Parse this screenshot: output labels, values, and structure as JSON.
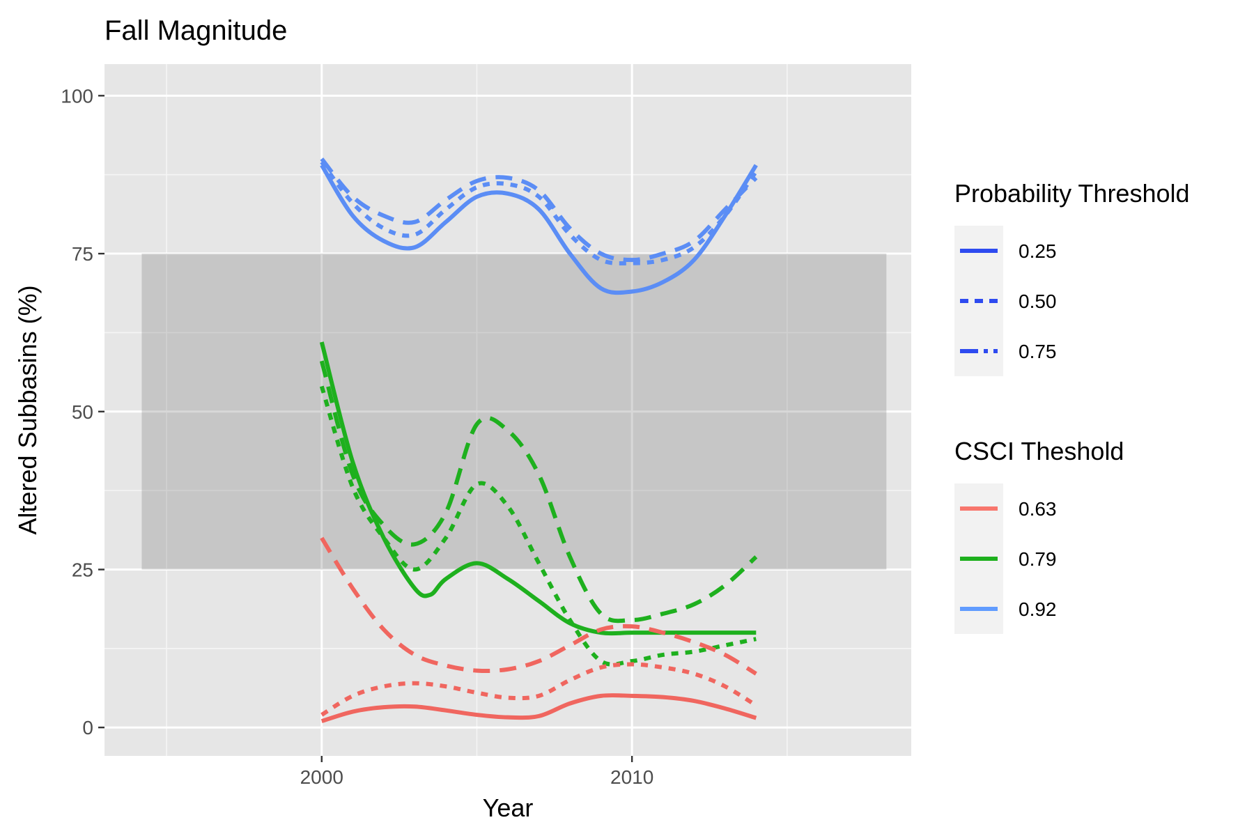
{
  "chart_data": {
    "type": "line",
    "title": "Fall Magnitude",
    "xlabel": "Year",
    "ylabel": "Altered Subbasins (%)",
    "xlim": [
      1993,
      2019
    ],
    "ylim": [
      -4.5,
      105
    ],
    "x_ticks": [
      2000,
      2010
    ],
    "x_tick_labels": [
      "2000",
      "2010"
    ],
    "y_ticks": [
      0,
      25,
      50,
      75,
      100
    ],
    "y_tick_labels": [
      "0",
      "25",
      "50",
      "75",
      "100"
    ],
    "x_minor_ticks": [
      1995,
      2005,
      2015
    ],
    "y_minor_ticks": [
      12.5,
      37.5,
      62.5,
      87.5
    ],
    "grid": true,
    "band": {
      "x": [
        1994.2,
        2018.2
      ],
      "y": [
        25,
        75
      ],
      "color": "#7f7f7f"
    },
    "legends": [
      {
        "title": "Probability Threshold",
        "position": "right",
        "kind": "linetype",
        "entries": [
          {
            "label": "0.25",
            "dash": "solid"
          },
          {
            "label": "0.50",
            "dash": "dotted"
          },
          {
            "label": "0.75",
            "dash": "dashed"
          }
        ],
        "color": "#2e4bf0"
      },
      {
        "title": "CSCI Theshold",
        "position": "right",
        "kind": "color",
        "entries": [
          {
            "label": "0.63",
            "color": "#F8766D"
          },
          {
            "label": "0.79",
            "color": "#1EB01E"
          },
          {
            "label": "0.92",
            "color": "#619CFF"
          }
        ]
      }
    ],
    "series": [
      {
        "csci": "0.92",
        "probability": "0.25",
        "color": "#5B8DF5",
        "dash": "solid",
        "x": [
          2000,
          2001,
          2002,
          2003,
          2004,
          2005,
          2006,
          2007,
          2008,
          2009,
          2010,
          2011,
          2012,
          2013,
          2014
        ],
        "y": [
          89,
          81,
          77,
          76,
          80,
          84,
          84.5,
          82,
          75,
          69.5,
          69,
          70.5,
          74,
          81,
          89
        ]
      },
      {
        "csci": "0.92",
        "probability": "0.50",
        "color": "#5B8DF5",
        "dash": "dotted",
        "x": [
          2000,
          2001,
          2002,
          2003,
          2004,
          2005,
          2006,
          2007,
          2008,
          2009,
          2010,
          2011,
          2012,
          2013,
          2014
        ],
        "y": [
          89.5,
          83,
          79,
          78,
          82,
          85.5,
          86,
          84,
          78,
          74,
          73.5,
          74,
          76,
          81,
          88
        ]
      },
      {
        "csci": "0.92",
        "probability": "0.75",
        "color": "#5B8DF5",
        "dash": "dashed",
        "x": [
          2000,
          2001,
          2002,
          2003,
          2004,
          2005,
          2006,
          2007,
          2008,
          2009,
          2010,
          2011,
          2012,
          2013,
          2014
        ],
        "y": [
          90,
          84,
          81,
          80,
          83.5,
          86.5,
          87,
          85,
          79,
          75,
          74,
          75,
          77,
          82,
          87
        ]
      },
      {
        "csci": "0.79",
        "probability": "0.25",
        "color": "#1EB01E",
        "dash": "solid",
        "x": [
          2000,
          2001,
          2002,
          2003,
          2003.5,
          2004,
          2005,
          2006,
          2007,
          2008,
          2009,
          2010,
          2011,
          2012,
          2013,
          2014
        ],
        "y": [
          61,
          42,
          30,
          22,
          21,
          23.5,
          26,
          23.5,
          20,
          16.5,
          15,
          15,
          15,
          15,
          15,
          15
        ]
      },
      {
        "csci": "0.79",
        "probability": "0.50",
        "color": "#1EB01E",
        "dash": "dotted",
        "x": [
          2000,
          2001,
          2002,
          2003,
          2004,
          2005,
          2006,
          2007,
          2008,
          2009,
          2010,
          2011,
          2012,
          2013,
          2014
        ],
        "y": [
          54,
          38,
          30,
          25,
          30,
          38.5,
          35,
          26,
          17,
          10.5,
          10.5,
          11.5,
          12,
          13,
          14
        ]
      },
      {
        "csci": "0.79",
        "probability": "0.75",
        "color": "#1EB01E",
        "dash": "dashed",
        "x": [
          2000,
          2001,
          2002,
          2003,
          2004,
          2005,
          2006,
          2007,
          2008,
          2009,
          2010,
          2011,
          2012,
          2013,
          2014
        ],
        "y": [
          58,
          40,
          32,
          29,
          34,
          48,
          47,
          40,
          27,
          18,
          17,
          18,
          19.5,
          22.5,
          27
        ]
      },
      {
        "csci": "0.63",
        "probability": "0.25",
        "color": "#F0665F",
        "dash": "solid",
        "x": [
          2000,
          2001,
          2002,
          2003,
          2004,
          2005,
          2006,
          2007,
          2008,
          2009,
          2010,
          2011,
          2012,
          2013,
          2014
        ],
        "y": [
          1,
          2.5,
          3.2,
          3.3,
          2.7,
          2,
          1.6,
          1.8,
          3.8,
          5,
          5,
          4.8,
          4.2,
          3,
          1.5
        ]
      },
      {
        "csci": "0.63",
        "probability": "0.50",
        "color": "#F0665F",
        "dash": "dotted",
        "x": [
          2000,
          2001,
          2002,
          2003,
          2004,
          2005,
          2006,
          2007,
          2008,
          2009,
          2010,
          2011,
          2012,
          2013,
          2014
        ],
        "y": [
          2,
          5,
          6.5,
          7,
          6.5,
          5.5,
          4.7,
          5,
          7.5,
          9.5,
          10,
          9.5,
          8.5,
          6.5,
          3.5
        ]
      },
      {
        "csci": "0.63",
        "probability": "0.75",
        "color": "#F0665F",
        "dash": "dashed",
        "x": [
          2000,
          2001,
          2002,
          2003,
          2004,
          2005,
          2006,
          2007,
          2008,
          2009,
          2010,
          2011,
          2012,
          2013,
          2014
        ],
        "y": [
          30,
          22,
          15.5,
          11.5,
          9.8,
          9,
          9.2,
          10.5,
          13,
          15.5,
          16,
          15,
          13.5,
          11.5,
          8.5
        ]
      }
    ]
  }
}
